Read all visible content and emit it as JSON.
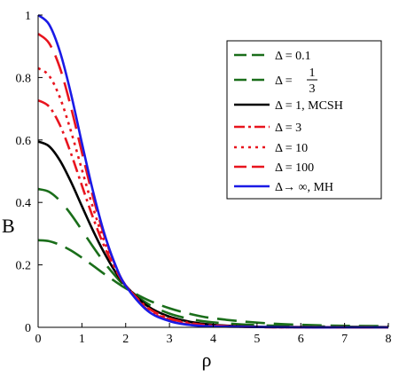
{
  "chart_data": {
    "type": "line",
    "xlabel": "ρ",
    "ylabel": "B",
    "xlim": [
      0,
      8
    ],
    "ylim": [
      0,
      1
    ],
    "xticks": [
      "0",
      "1",
      "2",
      "3",
      "4",
      "5",
      "6",
      "7",
      "8"
    ],
    "yticks": [
      "0",
      "0.2",
      "0.4",
      "0.6",
      "0.8",
      "1"
    ],
    "grid": false,
    "legend_position": "top-right",
    "colors": {
      "green": "#1a6e1a",
      "black": "#000000",
      "red": "#e8141e",
      "blue": "#1a1ae6"
    },
    "series": [
      {
        "name": "Δ = 0.1",
        "color": "#1a6e1a",
        "dash": "long-dash",
        "x": [
          0,
          0.25,
          0.5,
          0.75,
          1,
          1.25,
          1.5,
          1.75,
          2,
          2.5,
          3,
          3.5,
          4,
          5,
          6,
          7,
          8
        ],
        "values": [
          0.279,
          0.276,
          0.264,
          0.246,
          0.223,
          0.198,
          0.172,
          0.148,
          0.125,
          0.088,
          0.061,
          0.042,
          0.029,
          0.015,
          0.008,
          0.005,
          0.004
        ]
      },
      {
        "name": "Δ = 1/3",
        "color": "#1a6e1a",
        "dash": "wide-dash",
        "x": [
          0,
          0.25,
          0.5,
          0.75,
          1,
          1.25,
          1.5,
          1.75,
          2,
          2.5,
          3,
          3.5,
          4,
          5,
          6,
          7,
          8
        ],
        "values": [
          0.443,
          0.434,
          0.405,
          0.362,
          0.311,
          0.259,
          0.21,
          0.167,
          0.13,
          0.076,
          0.044,
          0.026,
          0.016,
          0.007,
          0.004,
          0.002,
          0.001
        ]
      },
      {
        "name": "Δ = 1, MCSH",
        "color": "#000000",
        "dash": "solid",
        "x": [
          0,
          0.25,
          0.5,
          0.75,
          1,
          1.25,
          1.5,
          1.75,
          2,
          2.5,
          3,
          3.5,
          4,
          5,
          6,
          7,
          8
        ],
        "values": [
          0.595,
          0.58,
          0.534,
          0.466,
          0.388,
          0.311,
          0.241,
          0.181,
          0.133,
          0.068,
          0.034,
          0.017,
          0.008,
          0.002,
          0.001,
          0,
          0
        ]
      },
      {
        "name": "Δ = 3",
        "color": "#e8141e",
        "dash": "dash-dot",
        "x": [
          0,
          0.25,
          0.5,
          0.75,
          1,
          1.25,
          1.5,
          1.75,
          2,
          2.5,
          3,
          3.5,
          4,
          5,
          6,
          7,
          8
        ],
        "values": [
          0.727,
          0.707,
          0.647,
          0.557,
          0.454,
          0.353,
          0.263,
          0.19,
          0.134,
          0.063,
          0.029,
          0.013,
          0.006,
          0.001,
          0,
          0,
          0
        ]
      },
      {
        "name": "Δ = 10",
        "color": "#e8141e",
        "dash": "dotted",
        "x": [
          0,
          0.25,
          0.5,
          0.75,
          1,
          1.25,
          1.5,
          1.75,
          2,
          2.5,
          3,
          3.5,
          4,
          5,
          6,
          7,
          8
        ],
        "values": [
          0.83,
          0.806,
          0.735,
          0.628,
          0.505,
          0.385,
          0.28,
          0.196,
          0.134,
          0.059,
          0.025,
          0.011,
          0.005,
          0.001,
          0,
          0,
          0
        ]
      },
      {
        "name": "Δ = 100",
        "color": "#e8141e",
        "dash": "long-dash",
        "x": [
          0,
          0.25,
          0.5,
          0.75,
          1,
          1.25,
          1.5,
          1.75,
          2,
          2.5,
          3,
          3.5,
          4,
          5,
          6,
          7,
          8
        ],
        "values": [
          0.94,
          0.91,
          0.83,
          0.705,
          0.56,
          0.42,
          0.298,
          0.203,
          0.134,
          0.056,
          0.022,
          0.009,
          0.004,
          0.001,
          0,
          0,
          0
        ]
      },
      {
        "name": "Δ→ ∞, MH",
        "color": "#1a1ae6",
        "dash": "solid",
        "x": [
          0,
          0.25,
          0.5,
          0.75,
          1,
          1.25,
          1.5,
          1.75,
          2,
          2.5,
          3,
          3.5,
          4,
          5,
          6,
          7,
          8
        ],
        "values": [
          1.0,
          0.97,
          0.882,
          0.748,
          0.59,
          0.438,
          0.306,
          0.205,
          0.133,
          0.053,
          0.02,
          0.007,
          0.003,
          0.001,
          0,
          0,
          0
        ]
      }
    ],
    "legend_entries": [
      {
        "label": "Δ = 0.1"
      },
      {
        "prefix": "Δ = ",
        "numerator": "1",
        "denominator": "3"
      },
      {
        "label": "Δ = 1, MCSH"
      },
      {
        "label": "Δ = 3"
      },
      {
        "label": "Δ = 10"
      },
      {
        "label": "Δ = 100"
      },
      {
        "label": "Δ→ ∞, MH"
      }
    ]
  }
}
